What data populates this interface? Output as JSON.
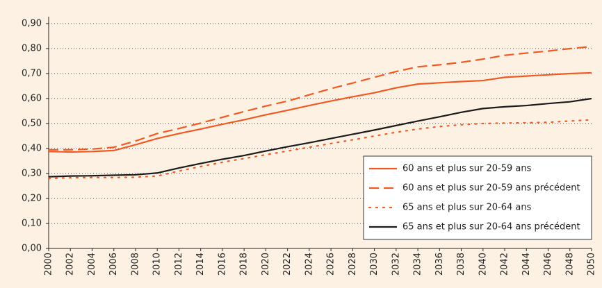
{
  "chart_data": {
    "type": "line",
    "x": [
      2000,
      2002,
      2004,
      2006,
      2008,
      2010,
      2012,
      2014,
      2016,
      2018,
      2020,
      2022,
      2024,
      2026,
      2028,
      2030,
      2032,
      2034,
      2036,
      2038,
      2040,
      2042,
      2044,
      2046,
      2048,
      2050
    ],
    "series": [
      {
        "name": "60 ans et plus sur 20-59 ans",
        "color": "#f05a22",
        "style": "solid",
        "values": [
          0.388,
          0.386,
          0.388,
          0.392,
          0.415,
          0.44,
          0.46,
          0.478,
          0.497,
          0.515,
          0.535,
          0.553,
          0.572,
          0.59,
          0.607,
          0.623,
          0.643,
          0.658,
          0.663,
          0.668,
          0.672,
          0.685,
          0.69,
          0.695,
          0.7,
          0.703
        ]
      },
      {
        "name": "60 ans et plus sur 20-59 ans précédent",
        "color": "#f05a22",
        "style": "dashed",
        "values": [
          0.395,
          0.395,
          0.398,
          0.405,
          0.43,
          0.46,
          0.48,
          0.502,
          0.525,
          0.548,
          0.57,
          0.59,
          0.615,
          0.64,
          0.662,
          0.685,
          0.708,
          0.727,
          0.735,
          0.745,
          0.758,
          0.773,
          0.782,
          0.79,
          0.8,
          0.808
        ]
      },
      {
        "name": "65 ans et plus sur 20-64 ans",
        "color": "#f05a22",
        "style": "dotted",
        "values": [
          0.28,
          0.283,
          0.284,
          0.284,
          0.285,
          0.29,
          0.31,
          0.328,
          0.345,
          0.36,
          0.375,
          0.39,
          0.405,
          0.42,
          0.435,
          0.45,
          0.465,
          0.478,
          0.488,
          0.495,
          0.5,
          0.502,
          0.503,
          0.505,
          0.51,
          0.515
        ]
      },
      {
        "name": "65 ans et plus sur 20-64 ans précédent",
        "color": "#1a1a1a",
        "style": "solid",
        "values": [
          0.287,
          0.29,
          0.291,
          0.293,
          0.295,
          0.302,
          0.322,
          0.34,
          0.357,
          0.372,
          0.39,
          0.407,
          0.423,
          0.44,
          0.457,
          0.474,
          0.492,
          0.51,
          0.527,
          0.545,
          0.56,
          0.567,
          0.572,
          0.58,
          0.587,
          0.6
        ]
      }
    ],
    "xlim": [
      2000,
      2050
    ],
    "xticks": [
      2000,
      2002,
      2004,
      2006,
      2008,
      2010,
      2012,
      2014,
      2016,
      2018,
      2020,
      2022,
      2024,
      2026,
      2028,
      2030,
      2032,
      2034,
      2036,
      2038,
      2040,
      2042,
      2044,
      2046,
      2048,
      2050
    ],
    "ylim": [
      0,
      0.9
    ],
    "yticks": [
      {
        "value": 0,
        "label": "0,00"
      },
      {
        "value": 0.1,
        "label": "0,10"
      },
      {
        "value": 0.2,
        "label": "0,20"
      },
      {
        "value": 0.3,
        "label": "0,30"
      },
      {
        "value": 0.4,
        "label": "0,40"
      },
      {
        "value": 0.5,
        "label": "0,50"
      },
      {
        "value": 0.6,
        "label": "0,60"
      },
      {
        "value": 0.7,
        "label": "0,70"
      },
      {
        "value": 0.8,
        "label": "0,80"
      },
      {
        "value": 0.9,
        "label": "0,90"
      }
    ],
    "grid": true,
    "legend": "lower right"
  }
}
